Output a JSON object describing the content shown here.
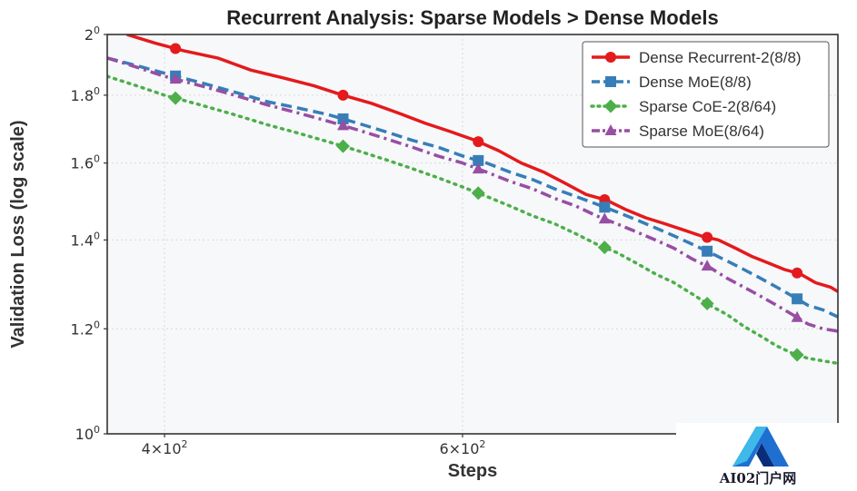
{
  "chart_data": {
    "type": "line",
    "title": "Recurrent Analysis: Sparse Models > Dense Models",
    "xlabel": "Steps",
    "ylabel": "Validation Loss (log scale)",
    "xscale": "log",
    "yscale": "log",
    "xlim": [
      370,
      1000
    ],
    "ylim": [
      1.0,
      2.0
    ],
    "grid": true,
    "legend_position": "top-right",
    "x_ticks": [
      {
        "value": 400,
        "base": "4",
        "sup": "2"
      },
      {
        "value": 600,
        "base": "6",
        "sup": "2"
      }
    ],
    "y_ticks": [
      {
        "value": 1.0,
        "base": "10",
        "sup": "0"
      },
      {
        "value": 1.2,
        "base": "1.2",
        "sup": "0"
      },
      {
        "value": 1.4,
        "base": "1.4",
        "sup": "0"
      },
      {
        "value": 1.6,
        "base": "1.6",
        "sup": "0"
      },
      {
        "value": 1.8,
        "base": "1.8",
        "sup": "0"
      },
      {
        "value": 2.0,
        "base": "2",
        "sup": "0"
      }
    ],
    "series": [
      {
        "name": "Dense Recurrent-2(8/8)",
        "color": "#e41a1c",
        "style": "solid",
        "marker": "circle",
        "x": [
          380,
          395,
          410,
          430,
          450,
          470,
          490,
          510,
          530,
          550,
          570,
          590,
          610,
          630,
          650,
          670,
          690,
          710,
          730,
          750,
          770,
          790,
          810,
          830,
          850,
          870,
          890,
          910,
          930,
          950,
          970,
          990,
          1000
        ],
        "y": [
          2.0,
          1.97,
          1.945,
          1.92,
          1.88,
          1.855,
          1.83,
          1.8,
          1.775,
          1.745,
          1.715,
          1.69,
          1.665,
          1.635,
          1.6,
          1.575,
          1.545,
          1.515,
          1.5,
          1.475,
          1.455,
          1.44,
          1.425,
          1.41,
          1.4,
          1.38,
          1.36,
          1.345,
          1.33,
          1.32,
          1.3,
          1.29,
          1.28
        ],
        "marker_x": [
          406,
          510,
          613,
          728,
          837,
          946
        ]
      },
      {
        "name": "Dense MoE(8/8)",
        "color": "#377eb8",
        "style": "dashed",
        "marker": "square",
        "x": [
          370,
          385,
          400,
          420,
          440,
          460,
          480,
          500,
          520,
          540,
          560,
          580,
          600,
          620,
          640,
          660,
          680,
          700,
          720,
          740,
          760,
          780,
          800,
          820,
          840,
          860,
          880,
          900,
          920,
          940,
          960,
          980,
          1000
        ],
        "y": [
          1.92,
          1.895,
          1.87,
          1.84,
          1.81,
          1.78,
          1.76,
          1.74,
          1.715,
          1.69,
          1.665,
          1.645,
          1.62,
          1.6,
          1.575,
          1.555,
          1.53,
          1.51,
          1.49,
          1.47,
          1.45,
          1.43,
          1.41,
          1.39,
          1.37,
          1.35,
          1.33,
          1.31,
          1.29,
          1.27,
          1.25,
          1.24,
          1.225
        ],
        "marker_x": [
          406,
          510,
          613,
          728,
          837,
          946
        ]
      },
      {
        "name": "Sparse CoE-2(8/64)",
        "color": "#4daf4a",
        "style": "dotted",
        "marker": "diamond",
        "x": [
          370,
          385,
          400,
          420,
          440,
          460,
          480,
          500,
          520,
          540,
          560,
          580,
          600,
          620,
          640,
          660,
          680,
          700,
          720,
          740,
          760,
          780,
          800,
          820,
          840,
          860,
          880,
          900,
          920,
          940,
          960,
          980,
          1000
        ],
        "y": [
          1.86,
          1.83,
          1.8,
          1.77,
          1.74,
          1.71,
          1.685,
          1.66,
          1.635,
          1.61,
          1.585,
          1.56,
          1.535,
          1.51,
          1.485,
          1.46,
          1.44,
          1.415,
          1.39,
          1.37,
          1.345,
          1.32,
          1.3,
          1.275,
          1.25,
          1.23,
          1.205,
          1.185,
          1.165,
          1.15,
          1.14,
          1.135,
          1.13
        ],
        "marker_x": [
          406,
          510,
          613,
          728,
          837,
          946
        ]
      },
      {
        "name": "Sparse MoE(8/64)",
        "color": "#984ea3",
        "style": "dashdot",
        "marker": "triangle",
        "x": [
          370,
          385,
          400,
          420,
          440,
          460,
          480,
          500,
          520,
          540,
          560,
          580,
          600,
          620,
          640,
          660,
          680,
          700,
          720,
          740,
          760,
          780,
          800,
          820,
          840,
          860,
          880,
          900,
          920,
          940,
          960,
          980,
          1000
        ],
        "y": [
          1.92,
          1.89,
          1.86,
          1.83,
          1.8,
          1.77,
          1.745,
          1.72,
          1.695,
          1.67,
          1.645,
          1.62,
          1.6,
          1.575,
          1.55,
          1.53,
          1.505,
          1.485,
          1.46,
          1.44,
          1.42,
          1.4,
          1.38,
          1.355,
          1.335,
          1.31,
          1.29,
          1.27,
          1.25,
          1.23,
          1.21,
          1.2,
          1.195
        ],
        "marker_x": [
          406,
          510,
          613,
          728,
          837,
          946
        ]
      }
    ]
  },
  "watermark": {
    "text": "AI02门户网"
  }
}
